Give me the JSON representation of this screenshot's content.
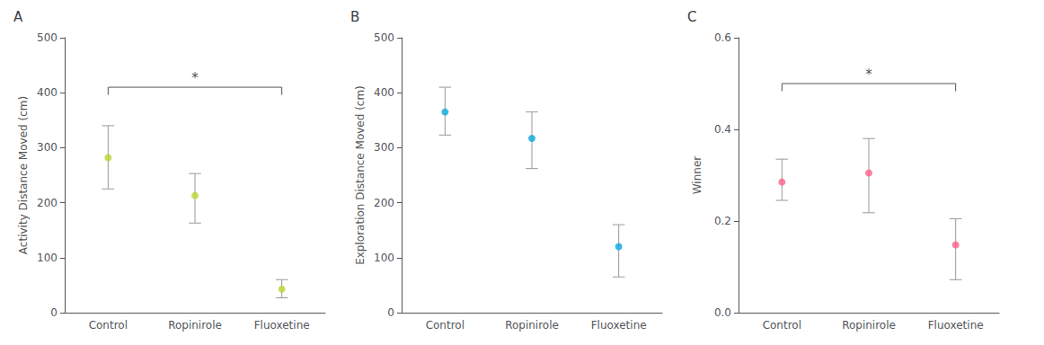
{
  "chart_data": [
    {
      "type": "scatter",
      "title": "A",
      "ylabel": "Activity Distance Moved (cm)",
      "categories": [
        "Control",
        "Ropinirole",
        "Fluoxetine"
      ],
      "values": [
        282,
        213,
        43
      ],
      "ci_low": [
        225,
        163,
        27
      ],
      "ci_high": [
        340,
        253,
        60
      ],
      "ylim": [
        0,
        500
      ],
      "yticks": [
        0,
        100,
        200,
        300,
        400,
        500
      ],
      "grid": false,
      "annotations": [
        {
          "text": "*",
          "from": "Control",
          "to": "Fluoxetine",
          "y": 410
        }
      ]
    },
    {
      "type": "scatter",
      "title": "B",
      "ylabel": "Exploration Distance Moved (cm)",
      "categories": [
        "Control",
        "Ropinirole",
        "Fluoxetine"
      ],
      "values": [
        365,
        317,
        120
      ],
      "ci_low": [
        323,
        262,
        65
      ],
      "ci_high": [
        410,
        365,
        160
      ],
      "ylim": [
        0,
        500
      ],
      "yticks": [
        0,
        100,
        200,
        300,
        400,
        500
      ],
      "grid": false
    },
    {
      "type": "scatter",
      "title": "C",
      "ylabel": "Winner",
      "categories": [
        "Control",
        "Ropinirole",
        "Fluoxetine"
      ],
      "values": [
        0.285,
        0.305,
        0.148
      ],
      "ci_low": [
        0.245,
        0.218,
        0.072
      ],
      "ci_high": [
        0.335,
        0.38,
        0.205
      ],
      "ylim": [
        0.0,
        0.6
      ],
      "yticks": [
        {
          "value": 0.0,
          "label": "0.0"
        },
        0.2,
        0.4,
        0.6
      ],
      "grid": false,
      "annotations": [
        {
          "text": "*",
          "from": "Control",
          "to": "Fluoxetine",
          "y": 0.5
        }
      ]
    }
  ]
}
